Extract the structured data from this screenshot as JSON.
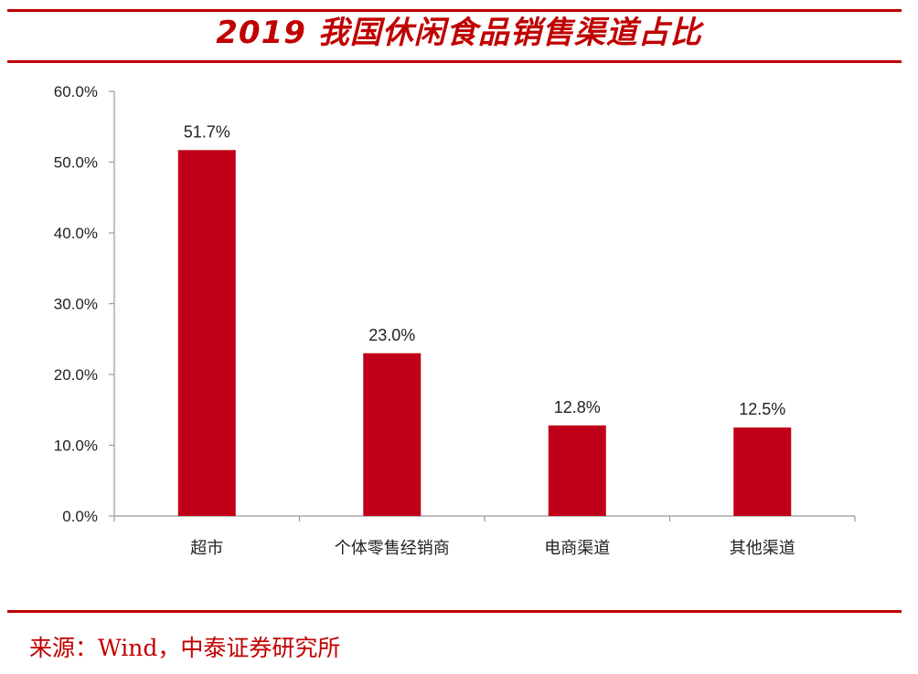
{
  "title": "2019 我国休闲食品销售渠道占比",
  "source": "来源：Wind，中泰证券研究所",
  "colors": {
    "accent": "#c00000",
    "bar": "#c00018",
    "axis": "#999999"
  },
  "chart_data": {
    "type": "bar",
    "title": "2019 我国休闲食品销售渠道占比",
    "xlabel": "",
    "ylabel": "",
    "categories": [
      "超市",
      "个体零售经销商",
      "电商渠道",
      "其他渠道"
    ],
    "values": [
      51.7,
      23.0,
      12.8,
      12.5
    ],
    "value_labels": [
      "51.7%",
      "23.0%",
      "12.8%",
      "12.5%"
    ],
    "ylim": [
      0,
      60
    ],
    "yticks": [
      0,
      10,
      20,
      30,
      40,
      50,
      60
    ],
    "ytick_labels": [
      "0.0%",
      "10.0%",
      "20.0%",
      "30.0%",
      "40.0%",
      "50.0%",
      "60.0%"
    ],
    "grid": false,
    "legend": "none"
  }
}
